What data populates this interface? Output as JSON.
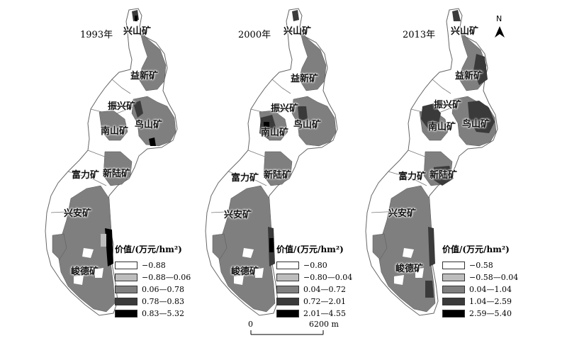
{
  "panels": [
    {
      "year_label": "1993年",
      "legend": {
        "title": "价值/(万元/hm²)",
        "classes": [
          {
            "label": "−0.88",
            "color": "#ffffff"
          },
          {
            "label": "−0.88—0.06",
            "color": "#bdbdbd"
          },
          {
            "label": "0.06—0.78",
            "color": "#7f7f7f"
          },
          {
            "label": "0.78—0.83",
            "color": "#3a3a3a"
          },
          {
            "label": "0.83—5.32",
            "color": "#000000"
          }
        ]
      }
    },
    {
      "year_label": "2000年",
      "legend": {
        "title": "价值/(万元/hm²)",
        "classes": [
          {
            "label": "−0.80",
            "color": "#ffffff"
          },
          {
            "label": "−0.80—0.04",
            "color": "#bdbdbd"
          },
          {
            "label": "0.04—0.72",
            "color": "#7f7f7f"
          },
          {
            "label": "0.72—2.01",
            "color": "#3a3a3a"
          },
          {
            "label": "2.01—4.55",
            "color": "#000000"
          }
        ]
      }
    },
    {
      "year_label": "2013年",
      "legend": {
        "title": "价值/(万元/hm²)",
        "classes": [
          {
            "label": "−0.58",
            "color": "#ffffff"
          },
          {
            "label": "−0.58—0.04",
            "color": "#bdbdbd"
          },
          {
            "label": "0.04—1.04",
            "color": "#7f7f7f"
          },
          {
            "label": "1.04—2.59",
            "color": "#3a3a3a"
          },
          {
            "label": "2.59—5.40",
            "color": "#000000"
          }
        ]
      }
    }
  ],
  "mine_labels": {
    "xingshan": "兴山矿",
    "yixin": "益新矿",
    "zhenxing": "振兴矿",
    "nanshan": "南山矿",
    "niaoshan": "鸟山矿",
    "fuli": "富力矿",
    "xinlu": "新陆矿",
    "xingan": "兴安矿",
    "junde": "峻德矿"
  },
  "north_arrow": {
    "letter": "N",
    "icon": "north-arrow-icon"
  },
  "scale_bar": {
    "start": "0",
    "end": "6200 m"
  }
}
